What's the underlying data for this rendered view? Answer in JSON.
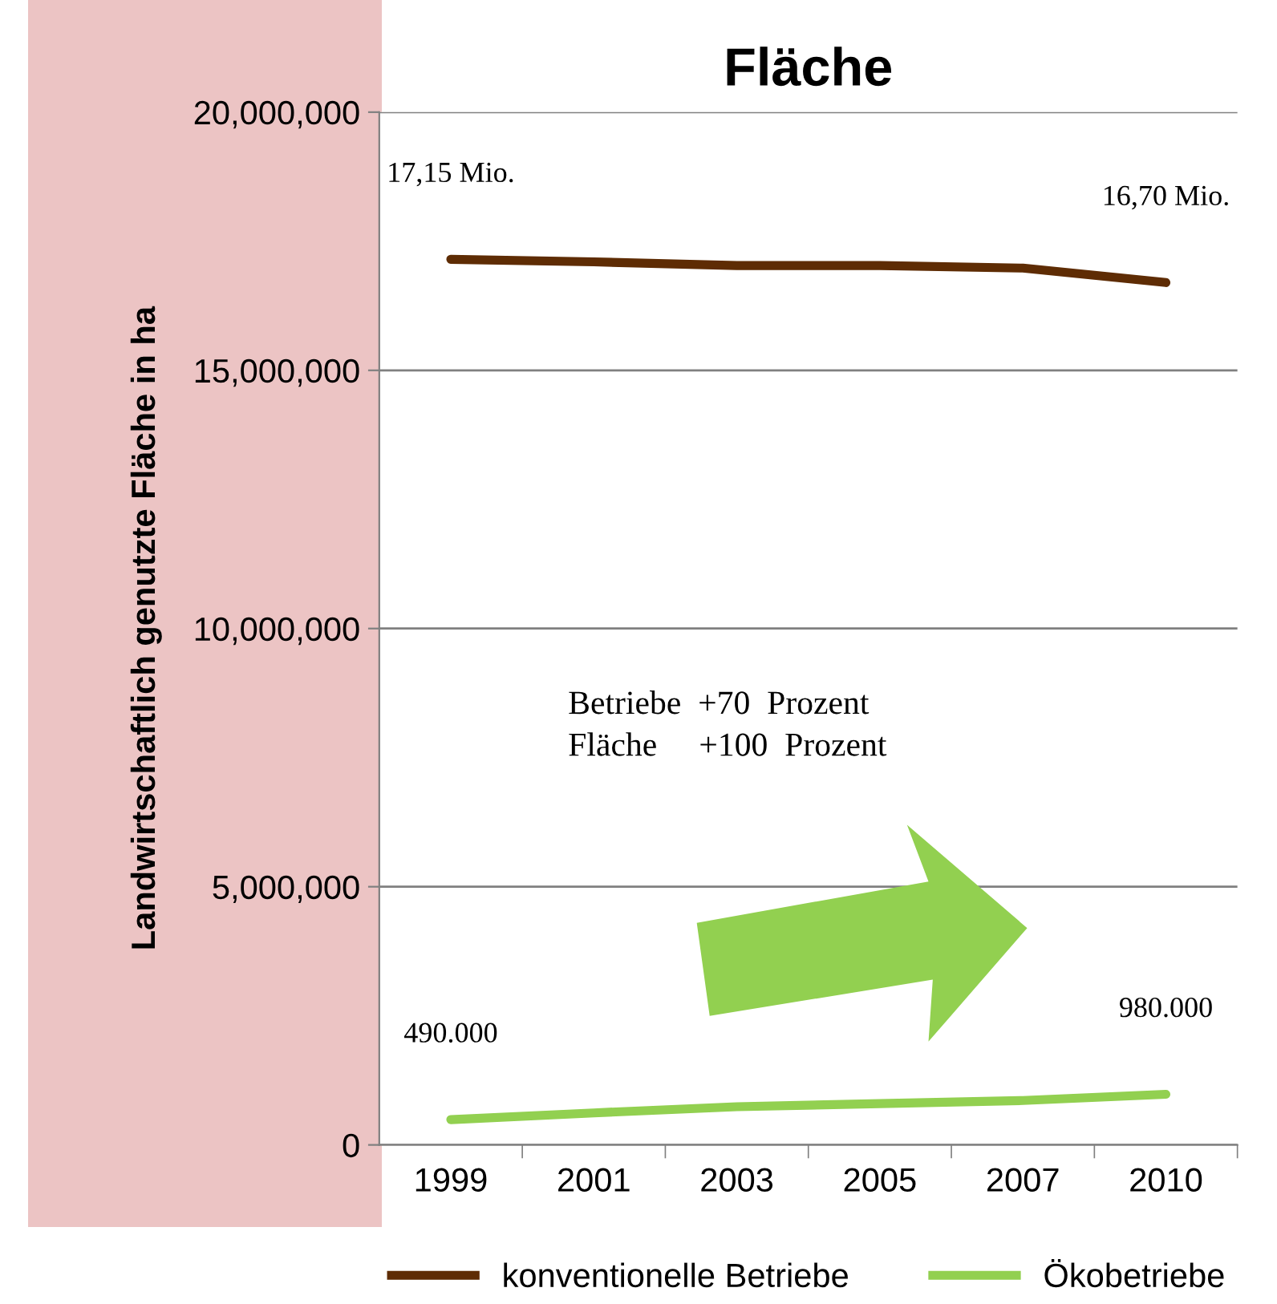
{
  "chart_data": {
    "type": "line",
    "title": "Fläche",
    "ylabel": "Landwirtschaftlich genutzte Fläche in ha",
    "categories": [
      "1999",
      "2001",
      "2003",
      "2005",
      "2007",
      "2010"
    ],
    "series": [
      {
        "name": "konventionelle Betriebe",
        "color": "#5e2c04",
        "values": [
          17150000,
          17100000,
          17030000,
          17030000,
          16980000,
          16700000
        ]
      },
      {
        "name": "Ökobetriebe",
        "color": "#92d050",
        "values": [
          490000,
          620000,
          740000,
          800000,
          860000,
          980000
        ]
      }
    ],
    "ylim": [
      0,
      20000000
    ],
    "yticks": [
      {
        "value": 0,
        "label": "0"
      },
      {
        "value": 5000000,
        "label": "5,000,000"
      },
      {
        "value": 10000000,
        "label": "10,000,000"
      },
      {
        "value": 15000000,
        "label": "15,000,000"
      },
      {
        "value": 20000000,
        "label": "20,000,000"
      }
    ],
    "grid": "y",
    "legend": "bottom",
    "marker": "none",
    "line_style": "solid",
    "annotations": [
      {
        "text": "17,15 Mio.",
        "x": "1999",
        "y": 17150000
      },
      {
        "text": "16,70 Mio.",
        "x": "2010",
        "y": 16700000
      },
      {
        "text": "490.000",
        "x": "1999",
        "y": 490000
      },
      {
        "text": "980.000",
        "x": "2010",
        "y": 980000
      },
      "Betriebe  +70  Prozent\nFläche     +100  Prozent"
    ]
  }
}
